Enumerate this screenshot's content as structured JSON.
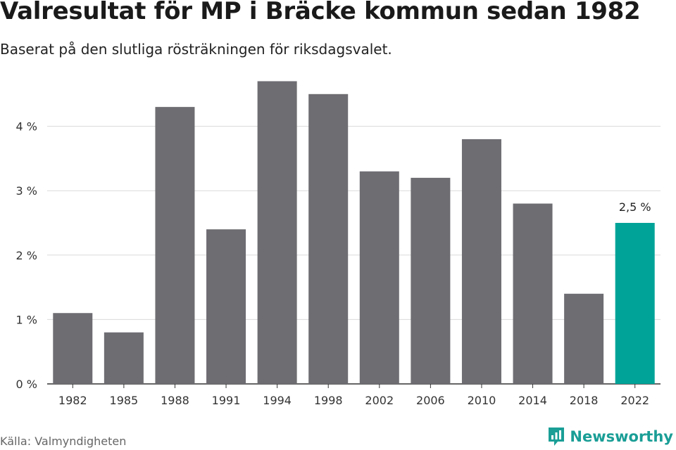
{
  "header": {
    "title": "Valresultat för MP i Bräcke kommun sedan 1982",
    "subtitle": "Baserat på den slutliga rösträkningen för riksdagsvalet."
  },
  "footer": {
    "source": "Källa: Valmyndigheten",
    "brand": "Newsworthy"
  },
  "colors": {
    "bar": "#6e6d72",
    "highlight": "#00a398",
    "grid": "#d9d9d9",
    "axis": "#333333"
  },
  "chart_data": {
    "type": "bar",
    "title": "Valresultat för MP i Bräcke kommun sedan 1982",
    "subtitle": "Baserat på den slutliga rösträkningen för riksdagsvalet.",
    "xlabel": "",
    "ylabel": "",
    "categories": [
      "1982",
      "1985",
      "1988",
      "1991",
      "1994",
      "1998",
      "2002",
      "2006",
      "2010",
      "2014",
      "2018",
      "2022"
    ],
    "values": [
      1.1,
      0.8,
      4.3,
      2.4,
      4.7,
      4.5,
      3.3,
      3.2,
      3.8,
      2.8,
      1.4,
      2.5
    ],
    "ylim": [
      0,
      5
    ],
    "yticks": [
      0,
      1,
      2,
      3,
      4
    ],
    "ytick_labels": [
      "0 %",
      "1 %",
      "2 %",
      "3 %",
      "4 %"
    ],
    "grid": true,
    "highlight_index": 11,
    "annotations": [
      {
        "category": "2022",
        "text": "2,5 %"
      }
    ]
  }
}
